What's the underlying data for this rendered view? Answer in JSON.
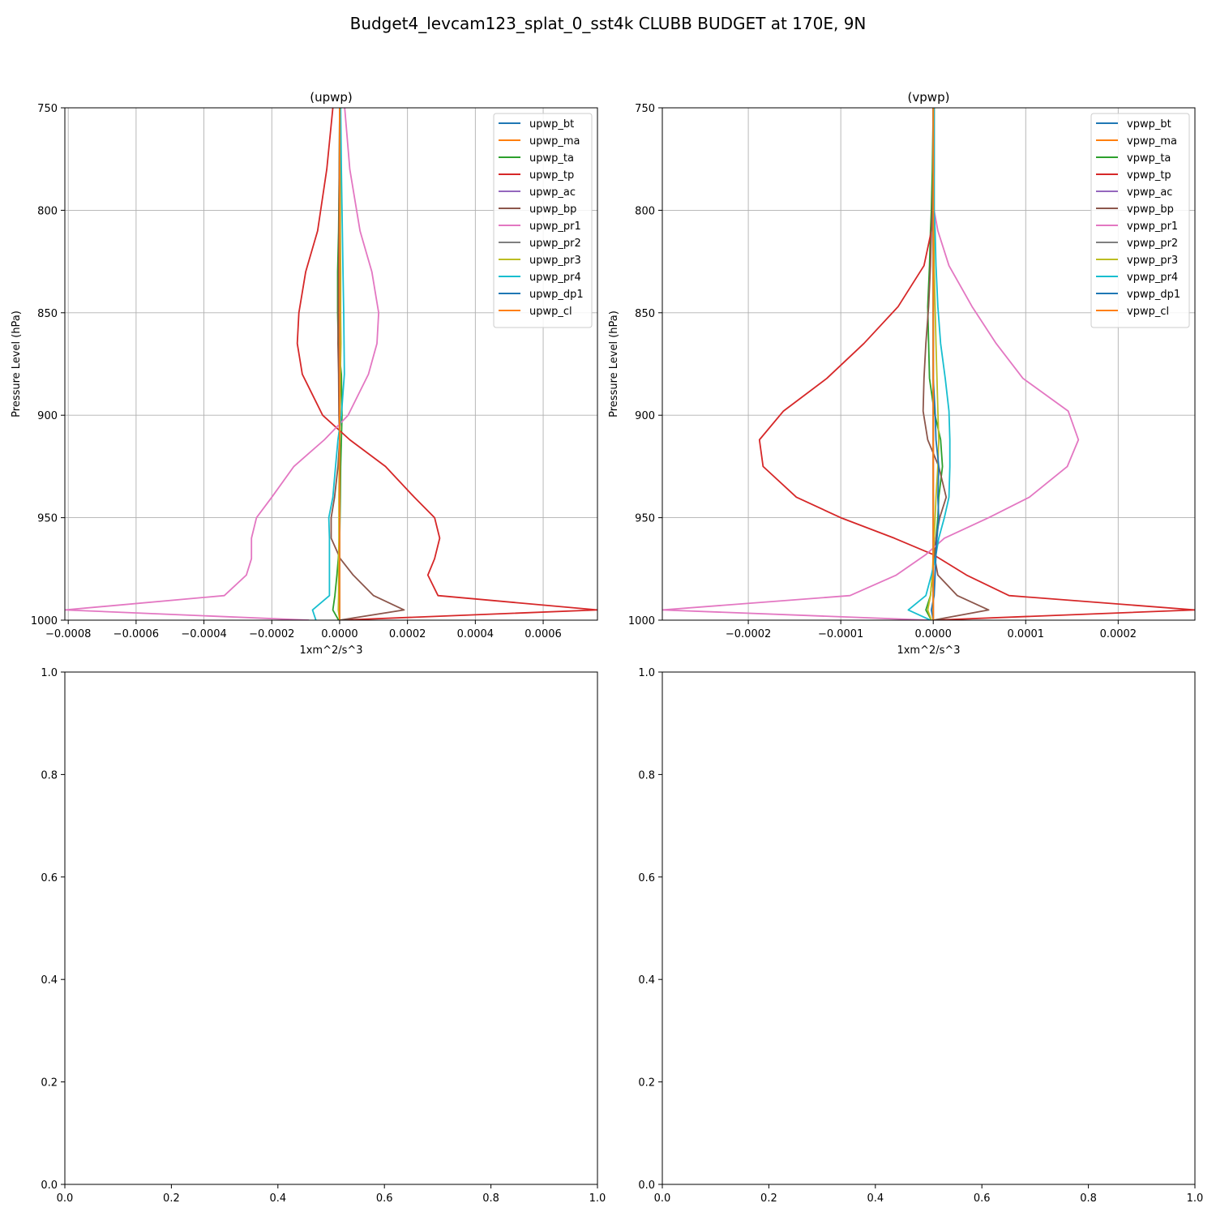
{
  "figure": {
    "title": "Budget4_levcam123_splat_0_sst4k CLUBB BUDGET at 170E, 9N"
  },
  "chart_data": [
    {
      "type": "line",
      "title": "(upwp)",
      "xlabel": "1xm^2/s^3",
      "ylabel": "Pressure Level (hPa)",
      "xlim": [
        -0.00081,
        0.00076
      ],
      "ylim": [
        1000,
        750
      ],
      "grid": true,
      "legend_placement": "top-right",
      "xticks": [
        -0.0008,
        -0.0006,
        -0.0004,
        -0.0002,
        0.0,
        0.0002,
        0.0004,
        0.0006
      ],
      "xtick_labels": [
        "−0.0008",
        "−0.0006",
        "−0.0004",
        "−0.0002",
        "0.0000",
        "0.0002",
        "0.0004",
        "0.0006"
      ],
      "yticks": [
        750,
        800,
        850,
        900,
        950,
        1000
      ],
      "ytick_labels": [
        "750",
        "800",
        "850",
        "900",
        "950",
        "1000"
      ],
      "levels": [
        750,
        780,
        810,
        830,
        850,
        865,
        880,
        900,
        912,
        925,
        940,
        950,
        960,
        970,
        978,
        988,
        995,
        1000
      ],
      "series": [
        {
          "name": "upwp_bt",
          "color": "#1f77b4",
          "values": [
            0,
            0,
            0,
            0,
            0,
            0,
            0,
            0,
            0,
            0,
            0,
            0,
            0,
            0,
            0,
            0,
            0,
            0
          ]
        },
        {
          "name": "upwp_ma",
          "color": "#ff7f0e",
          "values": [
            0,
            0,
            0,
            0,
            0,
            0,
            0,
            0,
            0,
            0,
            0,
            0,
            0,
            0,
            0,
            0,
            0,
            0
          ]
        },
        {
          "name": "upwp_ta",
          "color": "#2ca02c",
          "values": [
            0,
            -1e-06,
            -3e-06,
            -6e-06,
            -6e-06,
            -4e-06,
            5e-06,
            7e-06,
            5e-06,
            3e-06,
            2e-06,
            1e-06,
            0,
            -4e-06,
            -8e-06,
            -1.4e-05,
            -2e-05,
            -3e-06
          ]
        },
        {
          "name": "upwp_tp",
          "color": "#d62728",
          "values": [
            -2e-05,
            -3.8e-05,
            -6.5e-05,
            -0.0001,
            -0.00012,
            -0.000125,
            -0.00011,
            -5e-05,
            3e-05,
            0.000135,
            0.00022,
            0.00028,
            0.000295,
            0.00028,
            0.00026,
            0.00029,
            0.00076,
            0.0
          ]
        },
        {
          "name": "upwp_ac",
          "color": "#9467bd",
          "values": [
            0,
            0,
            0,
            0,
            0,
            0,
            0,
            0,
            0,
            0,
            0,
            0,
            0,
            0,
            0,
            0,
            0,
            0
          ]
        },
        {
          "name": "upwp_bp",
          "color": "#8c564b",
          "values": [
            0,
            -1e-06,
            -2e-06,
            -3e-06,
            -4e-06,
            -5e-06,
            -3e-06,
            -2e-06,
            0,
            -5e-06,
            -1.5e-05,
            -2.5e-05,
            -2.5e-05,
            2e-06,
            4e-05,
            0.0001,
            0.00019,
            0.0
          ]
        },
        {
          "name": "upwp_pr1",
          "color": "#e377c2",
          "values": [
            1.5e-05,
            3e-05,
            6e-05,
            9.5e-05,
            0.000115,
            0.00011,
            8.5e-05,
            2.5e-05,
            -4.5e-05,
            -0.000135,
            -0.0002,
            -0.000245,
            -0.00026,
            -0.00026,
            -0.000275,
            -0.00034,
            -0.00081,
            -9e-05
          ]
        },
        {
          "name": "upwp_pr2",
          "color": "#7f7f7f",
          "values": [
            0,
            0,
            0,
            0,
            0,
            0,
            0,
            0,
            0,
            0,
            0,
            0,
            0,
            0,
            0,
            0,
            0,
            0
          ]
        },
        {
          "name": "upwp_pr3",
          "color": "#bcbd22",
          "values": [
            2e-06,
            2e-06,
            2e-06,
            3e-06,
            3e-06,
            4e-06,
            2e-06,
            1e-06,
            0,
            -1e-06,
            -2e-06,
            -2e-06,
            -2e-06,
            -3e-06,
            -3e-06,
            -3e-06,
            -4e-06,
            0.0
          ]
        },
        {
          "name": "upwp_pr4",
          "color": "#17becf",
          "values": [
            3e-06,
            5e-06,
            8e-06,
            1e-05,
            1.2e-05,
            1.3e-05,
            1.4e-05,
            5e-06,
            -5e-06,
            -1.2e-05,
            -2e-05,
            -3.2e-05,
            -3e-05,
            -3e-05,
            -3e-05,
            -3e-05,
            -8e-05,
            -7e-05
          ]
        },
        {
          "name": "upwp_dp1",
          "color": "#1f77b4",
          "values": [
            0,
            0,
            0,
            0,
            0,
            0,
            0,
            0,
            0,
            0,
            0,
            0,
            0,
            0,
            0,
            0,
            0,
            0
          ]
        },
        {
          "name": "upwp_cl",
          "color": "#ff7f0e",
          "values": [
            0,
            0,
            0,
            0,
            0,
            0,
            0,
            0,
            0,
            0,
            0,
            0,
            0,
            0,
            0,
            0,
            0,
            0
          ]
        }
      ]
    },
    {
      "type": "line",
      "title": "(vpwp)",
      "xlabel": "1xm^2/s^3",
      "ylabel": "Pressure Level (hPa)",
      "xlim": [
        -0.000293,
        0.000283
      ],
      "ylim": [
        1000,
        750
      ],
      "grid": true,
      "legend_placement": "top-right",
      "xticks": [
        -0.0002,
        -0.0001,
        0.0,
        0.0001,
        0.0002
      ],
      "xtick_labels": [
        "−0.0002",
        "−0.0001",
        "0.0000",
        "0.0001",
        "0.0002"
      ],
      "yticks": [
        750,
        800,
        850,
        900,
        950,
        1000
      ],
      "ytick_labels": [
        "750",
        "800",
        "850",
        "900",
        "950",
        "1000"
      ],
      "levels": [
        750,
        780,
        800,
        810,
        827,
        847,
        865,
        882,
        898,
        912,
        925,
        940,
        950,
        960,
        968,
        978,
        988,
        995,
        1000
      ],
      "series": [
        {
          "name": "vpwp_bt",
          "color": "#1f77b4",
          "values": [
            0,
            0,
            0,
            0,
            0,
            0,
            0,
            0,
            0,
            0,
            0,
            0,
            0,
            0,
            0,
            0,
            0,
            0,
            0
          ]
        },
        {
          "name": "vpwp_ma",
          "color": "#ff7f0e",
          "values": [
            0,
            0,
            0,
            0,
            0,
            0,
            0,
            0,
            0,
            0,
            0,
            0,
            0,
            0,
            0,
            0,
            0,
            0,
            0
          ]
        },
        {
          "name": "vpwp_ta",
          "color": "#2ca02c",
          "values": [
            0,
            -1e-06,
            -2e-06,
            -3e-06,
            -4e-06,
            -6e-06,
            -5e-06,
            -4e-06,
            1e-06,
            8e-06,
            1e-05,
            6e-06,
            5e-06,
            3e-06,
            2e-06,
            -1e-06,
            -3e-06,
            -8e-06,
            -2e-06
          ]
        },
        {
          "name": "vpwp_tp",
          "color": "#d62728",
          "values": [
            1e-06,
            1e-06,
            0.0,
            -2e-06,
            -1e-05,
            -3.8e-05,
            -7.5e-05,
            -0.000115,
            -0.000162,
            -0.000188,
            -0.000184,
            -0.000148,
            -0.0001,
            -4.2e-05,
            0.0,
            3.6e-05,
            8.2e-05,
            0.000283,
            0.0
          ]
        },
        {
          "name": "vpwp_ac",
          "color": "#9467bd",
          "values": [
            0,
            0,
            0,
            0,
            0,
            0,
            0,
            0,
            0,
            0,
            0,
            0,
            0,
            0,
            0,
            0,
            0,
            0,
            0
          ]
        },
        {
          "name": "vpwp_bp",
          "color": "#8c564b",
          "values": [
            0,
            0,
            -1e-06,
            -2e-06,
            -3e-06,
            -5e-06,
            -8e-06,
            -1e-05,
            -1.1e-05,
            -6e-06,
            6e-06,
            1.4e-05,
            7e-06,
            3e-06,
            1e-06,
            5e-06,
            2.6e-05,
            6e-05,
            0.0
          ]
        },
        {
          "name": "vpwp_pr1",
          "color": "#e377c2",
          "values": [
            1e-06,
            1e-06,
            1e-06,
            5e-06,
            1.7e-05,
            4.2e-05,
            6.8e-05,
            9.7e-05,
            0.000146,
            0.000157,
            0.000145,
            0.000104,
            6e-05,
            1.2e-05,
            -8e-06,
            -4e-05,
            -9e-05,
            -0.000293,
            -4e-06
          ]
        },
        {
          "name": "vpwp_pr2",
          "color": "#7f7f7f",
          "values": [
            0,
            0,
            0,
            0,
            0,
            0,
            0,
            0,
            0,
            0,
            0,
            0,
            0,
            0,
            0,
            0,
            0,
            0,
            0
          ]
        },
        {
          "name": "vpwp_pr3",
          "color": "#bcbd22",
          "values": [
            1e-06,
            1e-06,
            1e-06,
            1e-06,
            1e-06,
            2e-06,
            3e-06,
            4e-06,
            5e-06,
            6e-06,
            5e-06,
            3e-06,
            2e-06,
            1e-06,
            0.0,
            -1e-06,
            -3e-06,
            -6e-06,
            -2e-06
          ]
        },
        {
          "name": "vpwp_pr4",
          "color": "#17becf",
          "values": [
            1e-06,
            1e-06,
            1e-06,
            2e-06,
            3e-06,
            5e-06,
            8e-06,
            1.3e-05,
            1.7e-05,
            1.8e-05,
            1.8e-05,
            1.7e-05,
            1.2e-05,
            6e-06,
            3e-06,
            -2e-06,
            -8e-06,
            -2.7e-05,
            -3e-06
          ]
        },
        {
          "name": "vpwp_dp1",
          "color": "#1f77b4",
          "values": [
            0,
            0,
            0,
            0,
            0,
            0,
            0,
            0,
            2e-06,
            3e-06,
            6e-06,
            5e-06,
            6e-06,
            4e-06,
            3e-06,
            2e-06,
            1e-06,
            -2e-06,
            0.0
          ]
        },
        {
          "name": "vpwp_cl",
          "color": "#ff7f0e",
          "values": [
            0,
            0,
            0,
            0,
            0,
            0,
            0,
            0,
            0,
            0,
            0,
            0,
            0,
            0,
            0,
            0,
            0,
            0,
            0
          ]
        }
      ]
    },
    {
      "type": "line",
      "title": "",
      "xlabel": "",
      "ylabel": "",
      "xlim": [
        0,
        1
      ],
      "ylim": [
        0,
        1
      ],
      "grid": false,
      "xticks": [
        0.0,
        0.2,
        0.4,
        0.6,
        0.8,
        1.0
      ],
      "xtick_labels": [
        "0.0",
        "0.2",
        "0.4",
        "0.6",
        "0.8",
        "1.0"
      ],
      "yticks": [
        0.0,
        0.2,
        0.4,
        0.6,
        0.8,
        1.0
      ],
      "ytick_labels": [
        "0.0",
        "0.2",
        "0.4",
        "0.6",
        "0.8",
        "1.0"
      ],
      "series": []
    },
    {
      "type": "line",
      "title": "",
      "xlabel": "",
      "ylabel": "",
      "xlim": [
        0,
        1
      ],
      "ylim": [
        0,
        1
      ],
      "grid": false,
      "xticks": [
        0.0,
        0.2,
        0.4,
        0.6,
        0.8,
        1.0
      ],
      "xtick_labels": [
        "0.0",
        "0.2",
        "0.4",
        "0.6",
        "0.8",
        "1.0"
      ],
      "yticks": [
        0.0,
        0.2,
        0.4,
        0.6,
        0.8,
        1.0
      ],
      "ytick_labels": [
        "0.0",
        "0.2",
        "0.4",
        "0.6",
        "0.8",
        "1.0"
      ],
      "series": []
    }
  ]
}
